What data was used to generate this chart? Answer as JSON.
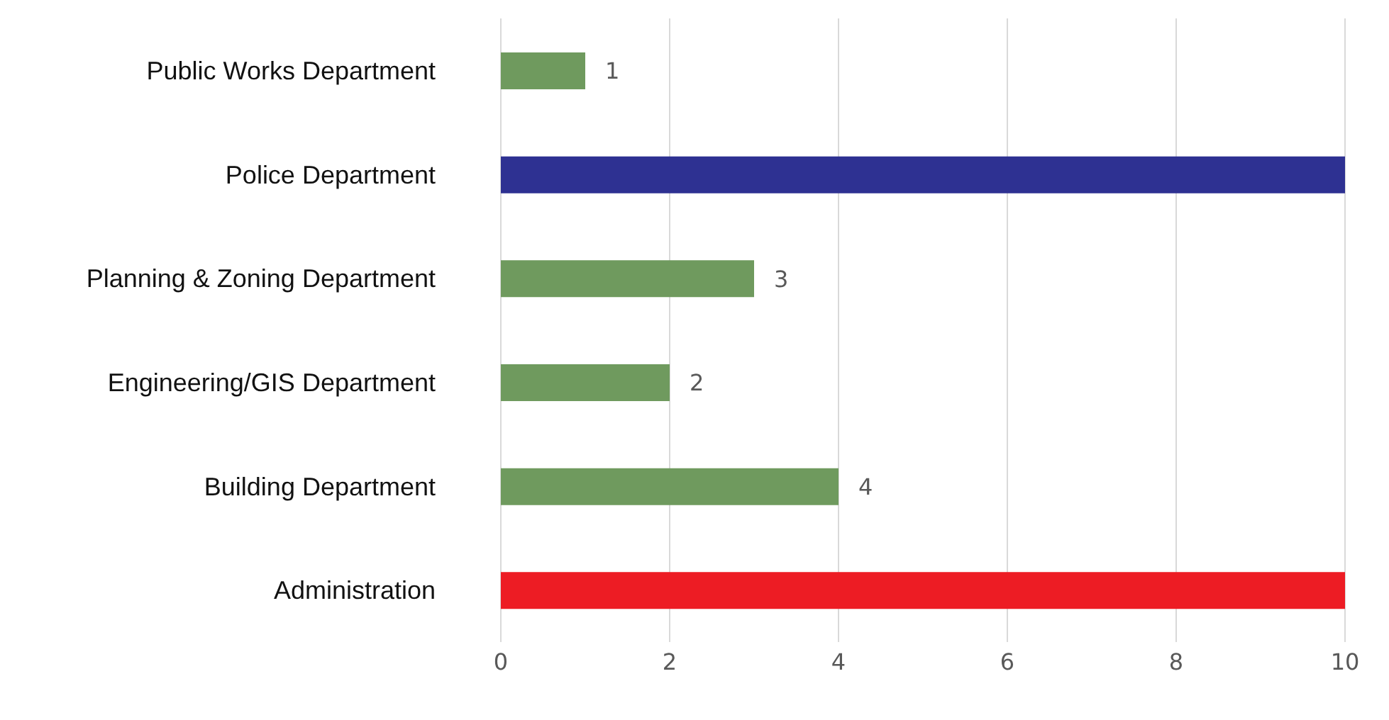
{
  "chart_data": {
    "type": "bar",
    "orientation": "horizontal",
    "categories": [
      "Public Works Department",
      "Police Department",
      "Planning & Zoning Department",
      "Engineering/GIS Department",
      "Building Department",
      "Administration"
    ],
    "values": [
      1,
      10,
      3,
      2,
      4,
      10
    ],
    "colors": [
      "#6f9a5e",
      "#2e3192",
      "#6f9a5e",
      "#6f9a5e",
      "#6f9a5e",
      "#ed1c24"
    ],
    "value_labels": [
      "1",
      null,
      "3",
      "2",
      "4",
      null
    ],
    "xlim": [
      0,
      10
    ],
    "xticks": [
      0,
      2,
      4,
      6,
      8,
      10
    ],
    "grid": "x"
  }
}
